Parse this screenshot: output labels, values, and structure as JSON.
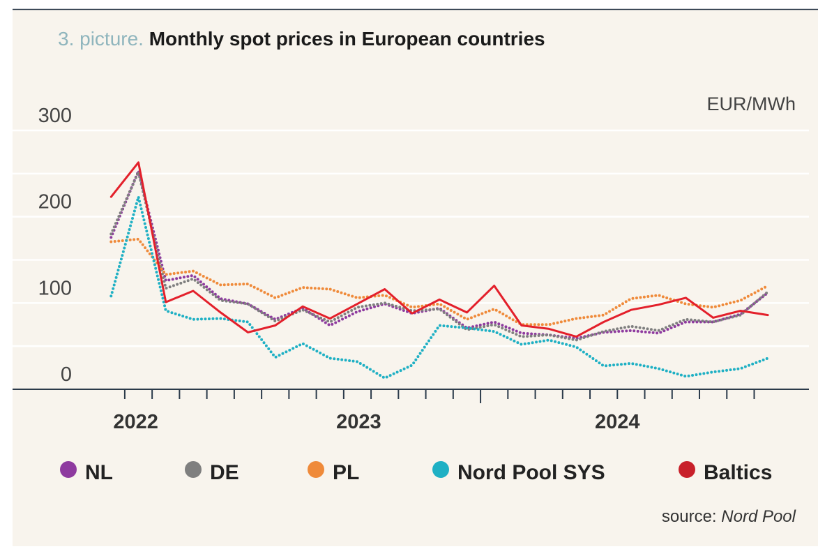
{
  "chart_data": {
    "type": "line",
    "title_prefix": "3. picture.",
    "title": "Monthly spot prices in European countries",
    "y_unit": "EUR/MWh",
    "source_label": "source:",
    "source": "Nord Pool",
    "x": [
      0,
      1,
      2,
      3,
      4,
      5,
      6,
      7,
      8,
      9,
      10,
      11,
      12,
      13,
      14,
      15,
      16,
      17,
      18,
      19,
      20,
      21,
      22,
      23,
      24
    ],
    "xlim": [
      -3.6,
      25.5
    ],
    "xticks": [
      0.5,
      1.5,
      2.5,
      3.5,
      4.5,
      5.5,
      6.5,
      7.5,
      8.5,
      9.5,
      10.5,
      11.5,
      12.5,
      13.5,
      14.5,
      15.5,
      16.5,
      17.5,
      18.5,
      19.5,
      20.5,
      21.5,
      22.5,
      23.5
    ],
    "major_xtick": 13.5,
    "x_labels": [
      {
        "value": 0.9,
        "label": "2022"
      },
      {
        "value": 9.05,
        "label": "2023"
      },
      {
        "value": 18.5,
        "label": "2024"
      }
    ],
    "ylim": [
      0,
      300
    ],
    "yticks": [
      0,
      100,
      200,
      300
    ],
    "yminor": [
      50,
      150,
      250
    ],
    "grid": true,
    "legend": "bottom",
    "series": [
      {
        "name": "NL",
        "color": "#8e3a9f",
        "dotted": true,
        "values": [
          176,
          253,
          126,
          132,
          105,
          99,
          81,
          94,
          74,
          90,
          99,
          88,
          94,
          71,
          78,
          65,
          63,
          59,
          66,
          68,
          65,
          78,
          78,
          87,
          112
        ]
      },
      {
        "name": "DE",
        "color": "#7f7f7f",
        "dotted": true,
        "values": [
          180,
          252,
          117,
          128,
          103,
          99,
          79,
          92,
          78,
          95,
          100,
          91,
          93,
          69,
          75,
          61,
          63,
          57,
          67,
          73,
          68,
          81,
          78,
          86,
          113
        ]
      },
      {
        "name": "PL",
        "color": "#ef8a3a",
        "dotted": true,
        "values": [
          171,
          174,
          133,
          137,
          121,
          122,
          106,
          118,
          116,
          106,
          109,
          95,
          99,
          81,
          93,
          75,
          75,
          82,
          86,
          105,
          109,
          99,
          95,
          103,
          120
        ]
      },
      {
        "name": "Nord Pool SYS",
        "color": "#1fb0c4",
        "dotted": true,
        "values": [
          108,
          223,
          91,
          81,
          82,
          78,
          37,
          53,
          36,
          32,
          13,
          28,
          74,
          71,
          67,
          52,
          57,
          49,
          27,
          30,
          24,
          15,
          20,
          24,
          36
        ]
      },
      {
        "name": "Baltics",
        "color": "#e3202b",
        "dotted": false,
        "legend_color": "#c8202a",
        "values": [
          223,
          263,
          101,
          114,
          89,
          66,
          74,
          96,
          82,
          99,
          116,
          88,
          104,
          89,
          120,
          74,
          70,
          61,
          78,
          92,
          98,
          106,
          83,
          91,
          86
        ]
      }
    ]
  }
}
